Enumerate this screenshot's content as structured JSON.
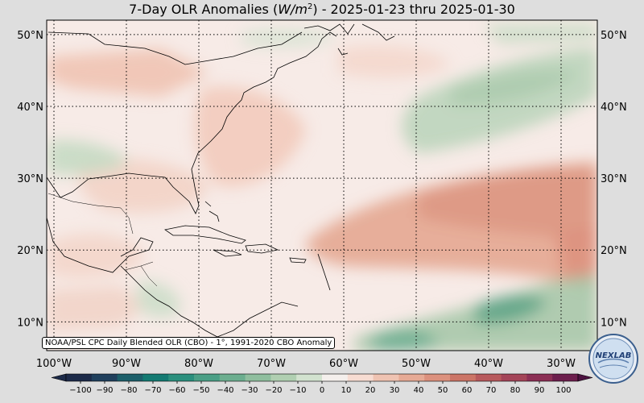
{
  "map": {
    "title_prefix": "7-Day OLR Anomalies (",
    "title_unit_base": "W/m",
    "title_unit_exp": "2",
    "title_suffix": ") - 2025-01-23 thru 2025-01-30",
    "lat_labels": [
      "50°N",
      "40°N",
      "30°N",
      "20°N",
      "10°N"
    ],
    "lat_values": [
      50,
      40,
      30,
      20,
      10
    ],
    "lon_labels": [
      "100°W",
      "90°W",
      "80°W",
      "70°W",
      "60°W",
      "50°W",
      "40°W",
      "30°W"
    ],
    "lon_values": [
      -100,
      -90,
      -80,
      -70,
      -60,
      -50,
      -40,
      -30
    ],
    "extent": {
      "lon_min": -101,
      "lon_max": -25,
      "lat_min": 6,
      "lat_max": 52
    },
    "credit": "NOAA/PSL CPC Daily Blended OLR (CBO) - 1°, 1991-2020 CBO Anomaly",
    "logo_text": "NEXLAB"
  },
  "colorbar": {
    "ticks": [
      "−100",
      "−90",
      "−80",
      "−70",
      "−60",
      "−50",
      "−40",
      "−30",
      "−20",
      "−10",
      "0",
      "10",
      "20",
      "30",
      "40",
      "50",
      "60",
      "70",
      "80",
      "90",
      "100"
    ],
    "min": -100,
    "max": 100,
    "colors": [
      "#1c2a49",
      "#20405d",
      "#1c5f6a",
      "#137a72",
      "#2a8f7d",
      "#4a9f86",
      "#6cae8f",
      "#8fbe9e",
      "#b0cfb1",
      "#d2e2cf",
      "#f4efec",
      "#f7dcd2",
      "#efc3b2",
      "#e6aa95",
      "#dc917e",
      "#cc7567",
      "#b85a5d",
      "#a44458",
      "#8c2f55",
      "#6d1e4d",
      "#4c1240"
    ]
  }
}
